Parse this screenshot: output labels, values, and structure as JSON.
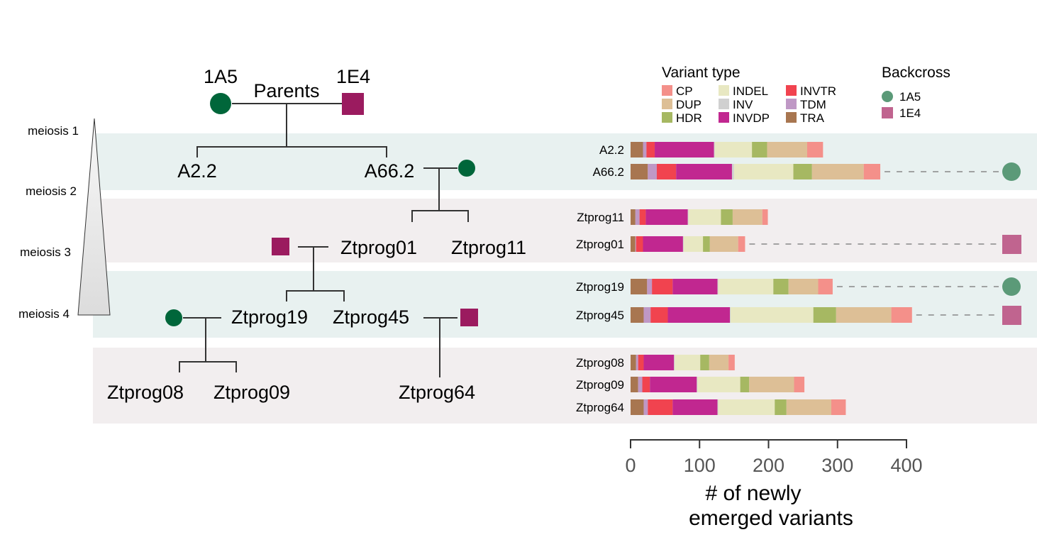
{
  "pedigree": {
    "parents_label": "Parents",
    "parent_left": "1A5",
    "parent_right": "1E4",
    "nodes": [
      "A2.2",
      "A66.2",
      "Ztprog01",
      "Ztprog11",
      "Ztprog19",
      "Ztprog45",
      "Ztprog08",
      "Ztprog09",
      "Ztprog64"
    ],
    "meiosis_labels": [
      "meiosis 1",
      "meiosis 2",
      "meiosis 3",
      "meiosis 4"
    ],
    "colors": {
      "1A5": "#00663a",
      "1E4": "#9b1b5f"
    }
  },
  "chart_data": {
    "type": "bar",
    "orientation": "horizontal",
    "stacked": true,
    "xlabel": "# of newly emerged variants",
    "xlabel_lines": [
      "# of newly",
      "emerged variants"
    ],
    "xlim": [
      0,
      400
    ],
    "xticks": [
      "0",
      "100",
      "200",
      "300",
      "400"
    ],
    "categories": [
      "A2.2",
      "A66.2",
      "Ztprog11",
      "Ztprog01",
      "Ztprog19",
      "Ztprog45",
      "Ztprog08",
      "Ztprog09",
      "Ztprog64"
    ],
    "series": [
      {
        "name": "TRA",
        "color": "#a87650",
        "values": [
          18,
          25,
          7,
          7,
          24,
          19,
          8,
          11,
          19
        ]
      },
      {
        "name": "TDM",
        "color": "#bf98c5",
        "values": [
          5,
          13,
          6,
          1,
          7,
          10,
          3,
          6,
          6
        ]
      },
      {
        "name": "INVTR",
        "color": "#f1434f",
        "values": [
          12,
          28,
          9,
          10,
          30,
          25,
          8,
          11,
          36
        ]
      },
      {
        "name": "INVDP",
        "color": "#c12790",
        "values": [
          86,
          81,
          61,
          58,
          65,
          90,
          44,
          68,
          65
        ]
      },
      {
        "name": "INV",
        "color": "#d0d0d0",
        "values": [
          1,
          3,
          1,
          1,
          1,
          1,
          1,
          1,
          1
        ]
      },
      {
        "name": "INDEL",
        "color": "#e8e8c2",
        "values": [
          54,
          86,
          47,
          28,
          80,
          120,
          37,
          62,
          82
        ]
      },
      {
        "name": "HDR",
        "color": "#a6b862",
        "values": [
          22,
          27,
          17,
          10,
          22,
          33,
          13,
          13,
          17
        ]
      },
      {
        "name": "DUP",
        "color": "#ddbf96",
        "values": [
          58,
          75,
          43,
          41,
          43,
          80,
          28,
          65,
          65
        ]
      },
      {
        "name": "CP",
        "color": "#f4908a",
        "values": [
          23,
          24,
          8,
          10,
          21,
          30,
          9,
          15,
          21
        ]
      }
    ],
    "legend": {
      "title": "Variant type",
      "placement": "top-right"
    },
    "backcross": {
      "title": "Backcross",
      "entries": [
        {
          "name": "1A5",
          "shape": "circle",
          "color": "#5b9a78"
        },
        {
          "name": "1E4",
          "shape": "square",
          "color": "#c0648f"
        }
      ],
      "assignments": {
        "A66.2": "1A5",
        "Ztprog01": "1E4",
        "Ztprog19": "1A5",
        "Ztprog45": "1E4"
      }
    },
    "grid": false
  }
}
